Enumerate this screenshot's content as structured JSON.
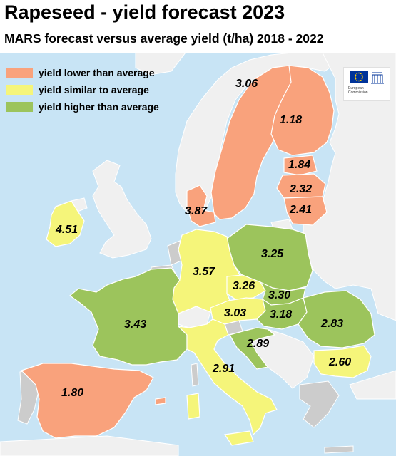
{
  "title": "Rapeseed - yield forecast 2023",
  "subtitle": "MARS forecast versus average yield (t/ha) 2018 - 2022",
  "colors": {
    "water": "#c8e4f5",
    "lower": "#f9a27c",
    "similar": "#f5f57a",
    "higher": "#9cc45c",
    "no_data": "#cccccc",
    "non_eu": "#f0f0f0",
    "border": "#ffffff"
  },
  "legend": [
    {
      "category": "lower",
      "label": "yield lower than average"
    },
    {
      "category": "similar",
      "label": "yield similar to average"
    },
    {
      "category": "higher",
      "label": "yield higher than average"
    }
  ],
  "logo": {
    "line1": "European",
    "line2": "Commission"
  },
  "regions": [
    {
      "id": "sweden",
      "category": "lower",
      "value": "3.06"
    },
    {
      "id": "finland",
      "category": "lower",
      "value": "1.18"
    },
    {
      "id": "estonia",
      "category": "lower",
      "value": "1.84"
    },
    {
      "id": "latvia",
      "category": "lower",
      "value": "2.32"
    },
    {
      "id": "lithuania",
      "category": "lower",
      "value": "2.41"
    },
    {
      "id": "denmark",
      "category": "lower",
      "value": "3.87"
    },
    {
      "id": "ireland",
      "category": "similar",
      "value": "4.51"
    },
    {
      "id": "poland",
      "category": "higher",
      "value": "3.25"
    },
    {
      "id": "germany",
      "category": "similar",
      "value": "3.57"
    },
    {
      "id": "czechia",
      "category": "similar",
      "value": "3.26"
    },
    {
      "id": "slovakia",
      "category": "higher",
      "value": "3.30"
    },
    {
      "id": "austria",
      "category": "similar",
      "value": "3.03"
    },
    {
      "id": "hungary",
      "category": "higher",
      "value": "3.18"
    },
    {
      "id": "romania",
      "category": "higher",
      "value": "2.83"
    },
    {
      "id": "france",
      "category": "higher",
      "value": "3.43"
    },
    {
      "id": "croatia",
      "category": "higher",
      "value": "2.89"
    },
    {
      "id": "italy",
      "category": "similar",
      "value": "2.91"
    },
    {
      "id": "bulgaria",
      "category": "similar",
      "value": "2.60"
    },
    {
      "id": "spain",
      "category": "lower",
      "value": "1.80"
    }
  ]
}
